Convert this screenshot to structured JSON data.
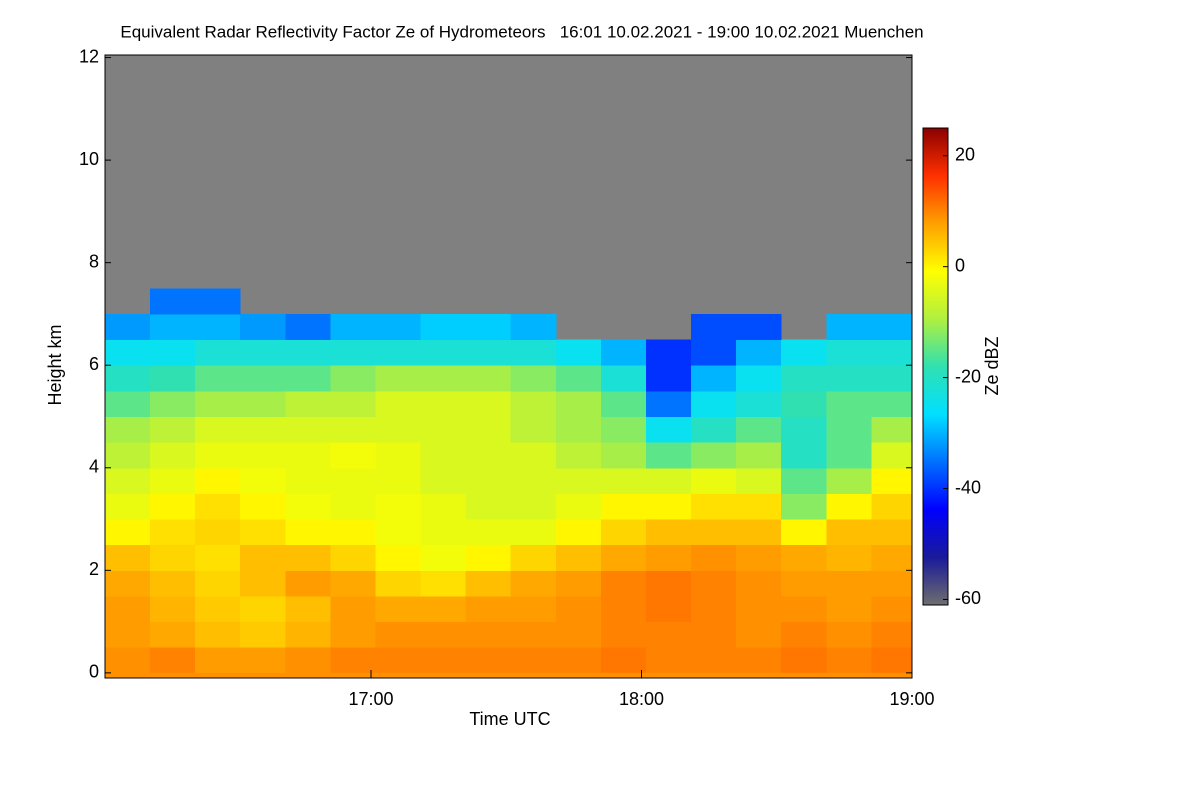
{
  "chart_data": {
    "type": "heatmap",
    "title": "Equivalent Radar Reflectivity Factor Ze of Hydrometeors   16:01 10.02.2021 - 19:00 10.02.2021 Muenchen",
    "x_label": "Time UTC",
    "y_label": "Height km",
    "colorbar_label": "Ze dBZ",
    "xlim": [
      16.0167,
      19.0
    ],
    "xticks": [
      {
        "value": 17,
        "label": "17:00"
      },
      {
        "value": 18,
        "label": "18:00"
      },
      {
        "value": 19,
        "label": "19:00"
      }
    ],
    "ylim": [
      -0.1,
      12.05
    ],
    "yticks": [
      0,
      2,
      4,
      6,
      8,
      10,
      12
    ],
    "clim": [
      -61,
      25
    ],
    "cticks": [
      -60,
      -40,
      -20,
      0,
      20
    ],
    "colormap": [
      "#6e6e6e",
      "#1a1a9a",
      "#0000ff",
      "#0070ff",
      "#00e0ff",
      "#30e0b0",
      "#b0f040",
      "#ffff00",
      "#ffa000",
      "#ff3000",
      "#8a0000"
    ],
    "missing_color": "#808080",
    "x": [
      16.1,
      16.267,
      16.433,
      16.6,
      16.767,
      16.933,
      17.1,
      17.267,
      17.433,
      17.6,
      17.767,
      17.933,
      18.1,
      18.267,
      18.433,
      18.6,
      18.767,
      18.933
    ],
    "y": [
      0.25,
      0.75,
      1.25,
      1.75,
      2.25,
      2.75,
      3.25,
      3.75,
      4.25,
      4.75,
      5.25,
      5.75,
      6.25,
      6.75,
      7.25
    ],
    "z": [
      [
        9,
        10,
        8,
        8,
        9,
        10,
        10,
        10,
        10,
        10,
        10,
        11,
        10,
        10,
        10,
        11,
        10,
        11
      ],
      [
        8,
        7,
        5,
        4,
        6,
        8,
        9,
        9,
        9,
        9,
        9,
        10,
        10,
        10,
        9,
        10,
        9,
        10
      ],
      [
        8,
        6,
        4,
        3,
        5,
        8,
        7,
        7,
        8,
        8,
        9,
        10,
        11,
        10,
        9,
        9,
        8,
        9
      ],
      [
        7,
        5,
        3,
        5,
        8,
        7,
        3,
        2,
        5,
        7,
        8,
        10,
        11,
        10,
        9,
        8,
        8,
        8
      ],
      [
        5,
        3,
        2,
        5,
        5,
        3,
        0,
        -2,
        0,
        3,
        5,
        7,
        8,
        9,
        8,
        7,
        6,
        7
      ],
      [
        0,
        2,
        3,
        2,
        0,
        0,
        -2,
        -3,
        -3,
        -3,
        0,
        3,
        5,
        5,
        5,
        0,
        5,
        5
      ],
      [
        -3,
        0,
        2,
        0,
        -2,
        -3,
        -2,
        -3,
        -5,
        -5,
        -3,
        0,
        0,
        2,
        2,
        -12,
        0,
        3
      ],
      [
        -5,
        -3,
        0,
        -2,
        -3,
        -3,
        -3,
        -5,
        -5,
        -5,
        -5,
        -5,
        -5,
        -3,
        -5,
        -15,
        -10,
        0
      ],
      [
        -8,
        -5,
        -3,
        -3,
        -3,
        -2,
        -3,
        -5,
        -5,
        -5,
        -8,
        -10,
        -15,
        -12,
        -10,
        -20,
        -15,
        -5
      ],
      [
        -10,
        -8,
        -5,
        -5,
        -5,
        -5,
        -5,
        -5,
        -5,
        -8,
        -10,
        -12,
        -25,
        -20,
        -15,
        -20,
        -15,
        -10
      ],
      [
        -15,
        -12,
        -10,
        -10,
        -8,
        -8,
        -5,
        -5,
        -5,
        -8,
        -10,
        -15,
        -35,
        -25,
        -22,
        -18,
        -15,
        -15
      ],
      [
        -20,
        -18,
        -15,
        -15,
        -15,
        -12,
        -10,
        -10,
        -10,
        -12,
        -15,
        -22,
        -40,
        -30,
        -25,
        -20,
        -20,
        -20
      ],
      [
        -25,
        -25,
        -22,
        -22,
        -22,
        -22,
        -22,
        -22,
        -22,
        -22,
        -25,
        -30,
        -40,
        -38,
        -30,
        -25,
        -22,
        -22
      ],
      [
        -32,
        -30,
        -30,
        -32,
        -35,
        -30,
        -30,
        -28,
        -28,
        -30,
        null,
        null,
        null,
        -38,
        -38,
        null,
        -30,
        -30
      ],
      [
        null,
        -35,
        -35,
        null,
        null,
        null,
        null,
        null,
        null,
        null,
        null,
        null,
        null,
        null,
        null,
        null,
        null,
        null
      ]
    ]
  }
}
